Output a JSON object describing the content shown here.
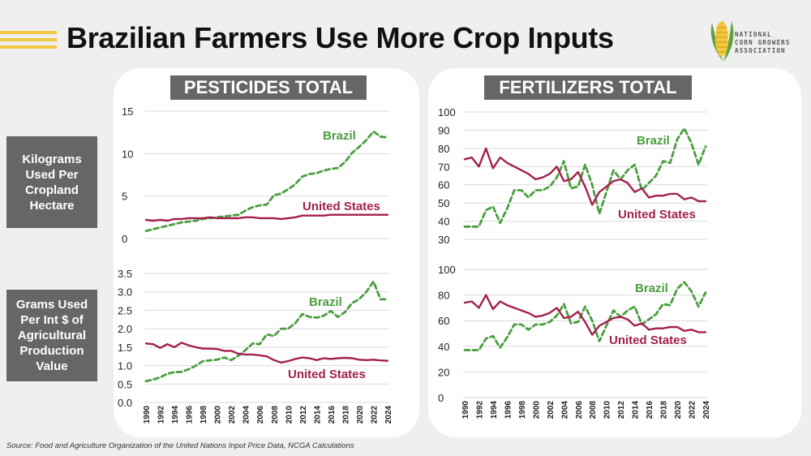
{
  "title": "Brazilian Farmers Use More Crop Inputs",
  "logo_lines": [
    "NATIONAL",
    "CORN GROWERS",
    "ASSOCIATION"
  ],
  "panels": {
    "left_title": "PESTICIDES TOTAL",
    "right_title": "FERTILIZERS TOTAL"
  },
  "row_labels": {
    "top": [
      "Kilograms",
      "Used Per",
      "Cropland",
      "Hectare"
    ],
    "bottom": [
      "Grams Used",
      "Per Int $ of",
      "Agricultural",
      "Production",
      "Value"
    ]
  },
  "source": "Source: Food and Agriculture Organization of the United Nations Input Price Data, NCGA Calculations",
  "colors": {
    "brazil": "#4a9e3f",
    "us": "#a3204a",
    "grid": "#d9d9d9",
    "panel_title_bg": "#666666",
    "accent": "#f2c744"
  },
  "chart_data": [
    {
      "id": "pest_ha",
      "type": "line",
      "x": [
        1990,
        1991,
        1992,
        1993,
        1994,
        1995,
        1996,
        1997,
        1998,
        1999,
        2000,
        2001,
        2002,
        2003,
        2004,
        2005,
        2006,
        2007,
        2008,
        2009,
        2010,
        2011,
        2012,
        2013,
        2014,
        2015,
        2016,
        2017,
        2018,
        2019,
        2020,
        2021,
        2022,
        2023,
        2024
      ],
      "yticks": [
        0,
        5,
        10,
        15
      ],
      "ylim": [
        0,
        15
      ],
      "series": [
        {
          "name": "Brazil",
          "style": "dashed",
          "values": [
            0.9,
            1.1,
            1.3,
            1.5,
            1.7,
            1.9,
            2.0,
            2.1,
            2.3,
            2.4,
            2.5,
            2.6,
            2.7,
            2.8,
            3.3,
            3.7,
            3.9,
            4.0,
            5.1,
            5.3,
            5.8,
            6.4,
            7.3,
            7.6,
            7.7,
            8.0,
            8.2,
            8.3,
            9.0,
            10.1,
            10.8,
            11.6,
            12.6,
            12.0,
            11.9
          ]
        },
        {
          "name": "United States",
          "style": "solid",
          "values": [
            2.2,
            2.1,
            2.2,
            2.1,
            2.3,
            2.3,
            2.4,
            2.4,
            2.4,
            2.5,
            2.4,
            2.4,
            2.4,
            2.4,
            2.5,
            2.5,
            2.4,
            2.4,
            2.4,
            2.3,
            2.4,
            2.5,
            2.7,
            2.7,
            2.7,
            2.7,
            2.8,
            2.8,
            2.8,
            2.8,
            2.8,
            2.8,
            2.8,
            2.8,
            2.8
          ]
        }
      ]
    },
    {
      "id": "pest_val",
      "type": "line",
      "x": [
        1990,
        1991,
        1992,
        1993,
        1994,
        1995,
        1996,
        1997,
        1998,
        1999,
        2000,
        2001,
        2002,
        2003,
        2004,
        2005,
        2006,
        2007,
        2008,
        2009,
        2010,
        2011,
        2012,
        2013,
        2014,
        2015,
        2016,
        2017,
        2018,
        2019,
        2020,
        2021,
        2022,
        2023,
        2024
      ],
      "xticks": [
        1990,
        1992,
        1994,
        1996,
        1998,
        2000,
        2002,
        2004,
        2006,
        2008,
        2010,
        2012,
        2014,
        2016,
        2018,
        2020,
        2022,
        2024
      ],
      "yticks": [
        0.0,
        0.5,
        1.0,
        1.5,
        2.0,
        2.5,
        3.0,
        3.5
      ],
      "ylim": [
        0,
        3.5
      ],
      "series": [
        {
          "name": "Brazil",
          "style": "dashed",
          "values": [
            0.58,
            0.62,
            0.68,
            0.78,
            0.82,
            0.83,
            0.9,
            1.0,
            1.12,
            1.14,
            1.16,
            1.22,
            1.15,
            1.27,
            1.42,
            1.6,
            1.58,
            1.85,
            1.8,
            2.0,
            2.0,
            2.15,
            2.4,
            2.32,
            2.3,
            2.35,
            2.48,
            2.32,
            2.45,
            2.7,
            2.8,
            3.0,
            3.28,
            2.8,
            2.8
          ]
        },
        {
          "name": "United States",
          "style": "solid",
          "values": [
            1.6,
            1.58,
            1.48,
            1.58,
            1.5,
            1.62,
            1.55,
            1.5,
            1.46,
            1.46,
            1.45,
            1.4,
            1.4,
            1.32,
            1.3,
            1.3,
            1.28,
            1.25,
            1.15,
            1.08,
            1.12,
            1.18,
            1.22,
            1.2,
            1.15,
            1.2,
            1.18,
            1.2,
            1.21,
            1.2,
            1.16,
            1.15,
            1.16,
            1.14,
            1.13
          ]
        }
      ]
    },
    {
      "id": "fert_ha",
      "type": "line",
      "x": [
        1990,
        1991,
        1992,
        1993,
        1994,
        1995,
        1996,
        1997,
        1998,
        1999,
        2000,
        2001,
        2002,
        2003,
        2004,
        2005,
        2006,
        2007,
        2008,
        2009,
        2010,
        2011,
        2012,
        2013,
        2014,
        2015,
        2016,
        2017,
        2018,
        2019,
        2020,
        2021,
        2022,
        2023,
        2024
      ],
      "yticks": [
        30,
        40,
        50,
        60,
        70,
        80,
        90,
        100
      ],
      "ylim": [
        30,
        100
      ],
      "series": [
        {
          "name": "Brazil",
          "style": "dashed",
          "values": [
            37,
            37,
            37,
            46,
            48,
            39,
            47,
            57,
            57,
            53,
            57,
            57,
            59,
            64,
            73,
            58,
            59,
            71,
            60,
            44,
            56,
            68,
            63,
            68,
            71,
            57,
            61,
            65,
            73,
            72,
            85,
            91,
            83,
            71,
            81
          ]
        },
        {
          "name": "United States",
          "style": "solid",
          "values": [
            74,
            75,
            70,
            80,
            69,
            75,
            72,
            70,
            68,
            66,
            63,
            64,
            66,
            70,
            62,
            63,
            67,
            59,
            49,
            56,
            59,
            62,
            63,
            61,
            56,
            58,
            53,
            54,
            54,
            55,
            55,
            52,
            53,
            51,
            51
          ]
        }
      ]
    },
    {
      "id": "fert_val",
      "type": "line",
      "x": [
        1990,
        1991,
        1992,
        1993,
        1994,
        1995,
        1996,
        1997,
        1998,
        1999,
        2000,
        2001,
        2002,
        2003,
        2004,
        2005,
        2006,
        2007,
        2008,
        2009,
        2010,
        2011,
        2012,
        2013,
        2014,
        2015,
        2016,
        2017,
        2018,
        2019,
        2020,
        2021,
        2022,
        2023,
        2024
      ],
      "xticks": [
        1990,
        1992,
        1994,
        1996,
        1998,
        2000,
        2002,
        2004,
        2006,
        2008,
        2010,
        2012,
        2014,
        2016,
        2018,
        2020,
        2022,
        2024
      ],
      "yticks": [
        0,
        20,
        40,
        60,
        80,
        100
      ],
      "ylim": [
        0,
        100
      ],
      "series": [
        {
          "name": "Brazil",
          "style": "dashed",
          "values": [
            37,
            37,
            37,
            46,
            48,
            39,
            47,
            57,
            57,
            53,
            57,
            57,
            59,
            64,
            73,
            58,
            59,
            71,
            60,
            44,
            56,
            68,
            63,
            68,
            71,
            57,
            61,
            65,
            73,
            72,
            85,
            90,
            83,
            71,
            82
          ]
        },
        {
          "name": "United States",
          "style": "solid",
          "values": [
            74,
            75,
            70,
            80,
            69,
            75,
            72,
            70,
            68,
            66,
            63,
            64,
            66,
            70,
            62,
            63,
            67,
            59,
            49,
            56,
            59,
            62,
            63,
            61,
            56,
            58,
            53,
            54,
            54,
            55,
            55,
            52,
            53,
            51,
            51
          ]
        }
      ]
    }
  ]
}
